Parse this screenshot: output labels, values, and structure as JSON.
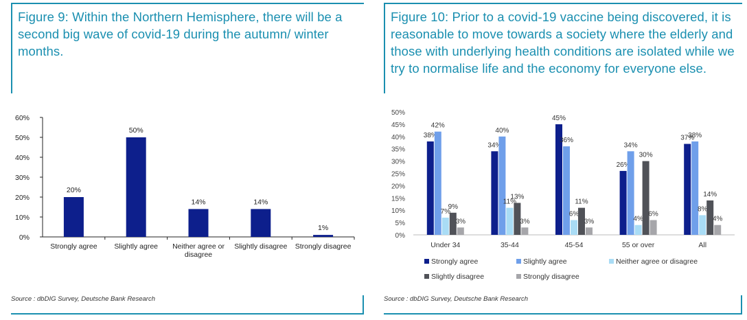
{
  "figure9": {
    "title": "Figure 9: Within the Northern Hemisphere, there will be a second big wave of covid-19 during the autumn/ winter months.",
    "source": "Source : dbDIG Survey, Deutsche Bank Research"
  },
  "figure10": {
    "title": "Figure 10: Prior to a covid-19 vaccine being discovered, it is reasonable to move towards a society where the elderly and those with underlying health conditions are isolated while we try to normalise life and the economy for everyone else.",
    "source": "Source : dbDIG Survey, Deutsche Bank Research"
  },
  "colors": {
    "accent": "#1a8fb0",
    "strongly_agree": "#0d1f8c",
    "slightly_agree": "#6f9fea",
    "neither": "#a9dcf5",
    "slightly_disagree": "#505258",
    "strongly_disagree": "#a6a6aa"
  },
  "chart_data": [
    {
      "type": "bar",
      "categories": [
        "Strongly agree",
        "Slightly agree",
        "Neither agree or disagree",
        "Slightly disagree",
        "Strongly disagree"
      ],
      "values": [
        20,
        50,
        14,
        14,
        1
      ],
      "data_labels": [
        "20%",
        "50%",
        "14%",
        "14%",
        "1%"
      ],
      "ylim": [
        0,
        60
      ],
      "yticks": [
        "0%",
        "10%",
        "20%",
        "30%",
        "40%",
        "50%",
        "60%"
      ],
      "grid": false,
      "color": "#0d1f8c"
    },
    {
      "type": "bar",
      "categories": [
        "Under 34",
        "35-44",
        "45-54",
        "55 or over",
        "All"
      ],
      "series": [
        {
          "name": "Strongly agree",
          "values": [
            38,
            34,
            45,
            26,
            37
          ],
          "labels": [
            "38%",
            "34%",
            "45%",
            "26%",
            "37%"
          ]
        },
        {
          "name": "Slightly agree",
          "values": [
            42,
            40,
            36,
            34,
            38
          ],
          "labels": [
            "42%",
            "40%",
            "36%",
            "34%",
            "38%"
          ]
        },
        {
          "name": "Neither agree or disagree",
          "values": [
            7,
            11,
            6,
            4,
            8
          ],
          "labels": [
            "7%",
            "11%",
            "6%",
            "4%",
            "8%"
          ]
        },
        {
          "name": "Slightly disagree",
          "values": [
            9,
            13,
            11,
            30,
            14
          ],
          "labels": [
            "9%",
            "13%",
            "11%",
            "30%",
            "14%"
          ]
        },
        {
          "name": "Strongly disagree",
          "values": [
            3,
            3,
            3,
            6,
            4
          ],
          "labels": [
            "3%",
            "3%",
            "3%",
            "6%",
            "4%"
          ]
        }
      ],
      "ylim": [
        0,
        50
      ],
      "yticks": [
        "0%",
        "5%",
        "10%",
        "15%",
        "20%",
        "25%",
        "30%",
        "35%",
        "40%",
        "45%",
        "50%"
      ],
      "grid": false,
      "legend_position": "bottom"
    }
  ]
}
